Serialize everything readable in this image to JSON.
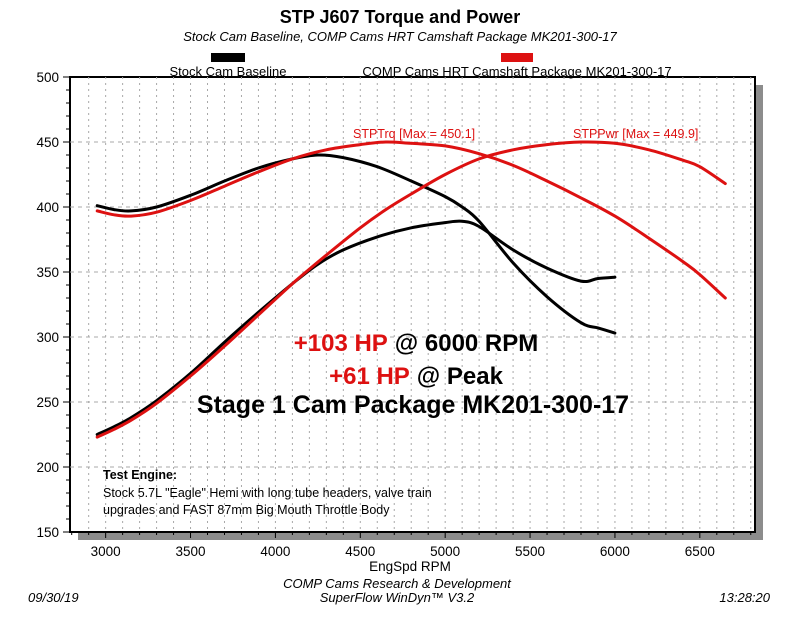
{
  "colors": {
    "red": "#dd1111",
    "black": "#000000",
    "grid": "#a8a8a8",
    "shadow": "#8c8c8c"
  },
  "title": "STP J607 Torque and Power",
  "subtitle": "Stock Cam Baseline, COMP Cams HRT Camshaft Package MK201-300-17",
  "legend": {
    "baseline": {
      "label": "Stock Cam Baseline",
      "color": "#000000"
    },
    "comp": {
      "label": "COMP Cams HRT Camshaft Package MK201-300-17",
      "color": "#dd1111"
    }
  },
  "annotations": {
    "torque_max_label": "STPTrq [Max = 450.1]",
    "power_max_label": "STPPwr [Max = 449.9]",
    "gain_line1_red": "+103 HP",
    "gain_line1_black": "@ 6000 RPM",
    "gain_line2_red": "+61 HP",
    "gain_line2_black": "@ Peak",
    "package_line": "Stage 1 Cam Package MK201-300-17"
  },
  "test_engine": {
    "heading": "Test Engine:",
    "line1": "Stock 5.7L \"Eagle\" Hemi with long tube headers, valve train",
    "line2": "upgrades and FAST 87mm Big Mouth Throttle Body"
  },
  "footer": {
    "credit": "COMP Cams Research & Development",
    "software": "SuperFlow WinDyn™ V3.2",
    "date": "09/30/19",
    "time": "13:28:20"
  },
  "chart_data": {
    "type": "line",
    "title": "STP J607 Torque and Power",
    "xlabel": "EngSpd RPM",
    "ylabel": "",
    "xlim": [
      2790,
      6825
    ],
    "ylim": [
      150,
      500
    ],
    "x_ticks": [
      3000,
      3500,
      4000,
      4500,
      5000,
      5500,
      6000,
      6500
    ],
    "y_ticks": [
      150,
      200,
      250,
      300,
      350,
      400,
      450,
      500
    ],
    "grid": {
      "style": "dashed",
      "x_line_every": 100,
      "y_line_every": 50
    },
    "legend_position": "top",
    "series": [
      {
        "name": "STPTrq - Stock Cam Baseline",
        "color": "#000000",
        "points": [
          [
            2950,
            401
          ],
          [
            3050,
            398
          ],
          [
            3150,
            397
          ],
          [
            3300,
            400
          ],
          [
            3500,
            409
          ],
          [
            3700,
            420
          ],
          [
            3900,
            430
          ],
          [
            4100,
            437
          ],
          [
            4250,
            440
          ],
          [
            4400,
            438
          ],
          [
            4600,
            431
          ],
          [
            4800,
            420
          ],
          [
            5000,
            408
          ],
          [
            5100,
            400
          ],
          [
            5200,
            389
          ],
          [
            5400,
            357
          ],
          [
            5600,
            331
          ],
          [
            5800,
            311
          ],
          [
            5900,
            307
          ],
          [
            6000,
            303
          ]
        ]
      },
      {
        "name": "STPPwr - Stock Cam Baseline",
        "color": "#000000",
        "points": [
          [
            2950,
            225
          ],
          [
            3050,
            231
          ],
          [
            3150,
            238
          ],
          [
            3300,
            251
          ],
          [
            3500,
            272
          ],
          [
            3700,
            296
          ],
          [
            3900,
            319
          ],
          [
            4100,
            341
          ],
          [
            4250,
            356
          ],
          [
            4400,
            367
          ],
          [
            4600,
            377
          ],
          [
            4800,
            384
          ],
          [
            5000,
            388
          ],
          [
            5100,
            389
          ],
          [
            5200,
            385
          ],
          [
            5400,
            367
          ],
          [
            5600,
            353
          ],
          [
            5800,
            343
          ],
          [
            5900,
            345
          ],
          [
            6000,
            346
          ]
        ]
      },
      {
        "name": "STPTrq - COMP Cams HRT Camshaft Package MK201-300-17",
        "color": "#dd1111",
        "max": 450.1,
        "points": [
          [
            2950,
            397
          ],
          [
            3050,
            394
          ],
          [
            3150,
            393
          ],
          [
            3300,
            396
          ],
          [
            3500,
            405
          ],
          [
            3700,
            416
          ],
          [
            3900,
            427
          ],
          [
            4100,
            437
          ],
          [
            4300,
            444
          ],
          [
            4500,
            448
          ],
          [
            4650,
            450
          ],
          [
            4800,
            449
          ],
          [
            5000,
            447
          ],
          [
            5200,
            441
          ],
          [
            5400,
            432
          ],
          [
            5600,
            420
          ],
          [
            5800,
            407
          ],
          [
            6000,
            393
          ],
          [
            6200,
            376
          ],
          [
            6400,
            358
          ],
          [
            6500,
            348
          ],
          [
            6650,
            330
          ]
        ]
      },
      {
        "name": "STPPwr - COMP Cams HRT Camshaft Package MK201-300-17",
        "color": "#dd1111",
        "max": 449.9,
        "points": [
          [
            2950,
            223
          ],
          [
            3050,
            229
          ],
          [
            3150,
            236
          ],
          [
            3300,
            249
          ],
          [
            3500,
            270
          ],
          [
            3700,
            293
          ],
          [
            3900,
            317
          ],
          [
            4100,
            341
          ],
          [
            4300,
            363
          ],
          [
            4500,
            384
          ],
          [
            4650,
            398
          ],
          [
            4800,
            410
          ],
          [
            5000,
            425
          ],
          [
            5200,
            437
          ],
          [
            5400,
            444
          ],
          [
            5600,
            448
          ],
          [
            5800,
            450
          ],
          [
            6000,
            449
          ],
          [
            6200,
            444
          ],
          [
            6400,
            436
          ],
          [
            6500,
            431
          ],
          [
            6650,
            418
          ]
        ]
      }
    ]
  }
}
